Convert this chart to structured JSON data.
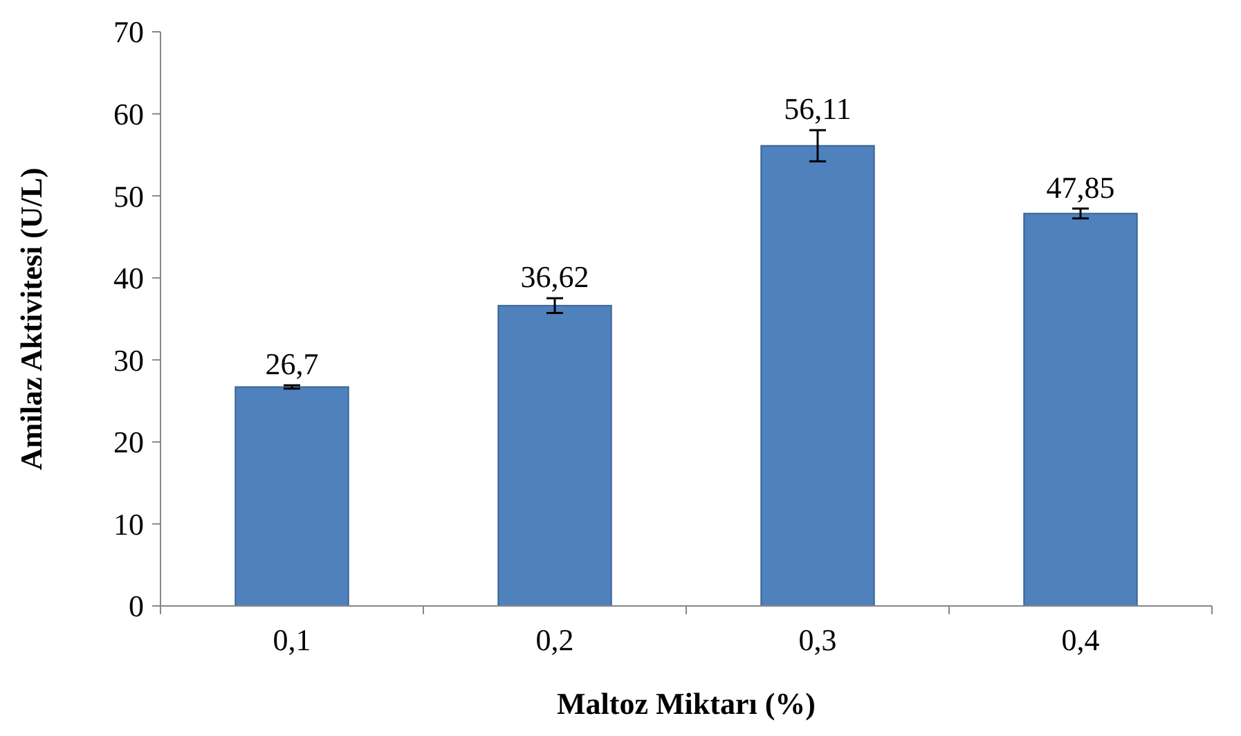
{
  "chart_data": {
    "type": "bar",
    "xlabel": "Maltoz Miktarı (%)",
    "ylabel": "Amilaz Aktivitesi (U/L)",
    "categories": [
      "0,1",
      "0,2",
      "0,3",
      "0,4"
    ],
    "values": [
      26.7,
      36.62,
      56.11,
      47.85
    ],
    "value_labels": [
      "26,7",
      "36,62",
      "56,11",
      "47,85"
    ],
    "errors": [
      0.2,
      0.9,
      1.9,
      0.6
    ],
    "color": "#4f81bd",
    "ylim": [
      0,
      70
    ],
    "yticks": [
      0,
      10,
      20,
      30,
      40,
      50,
      60,
      70
    ],
    "grid": false
  }
}
